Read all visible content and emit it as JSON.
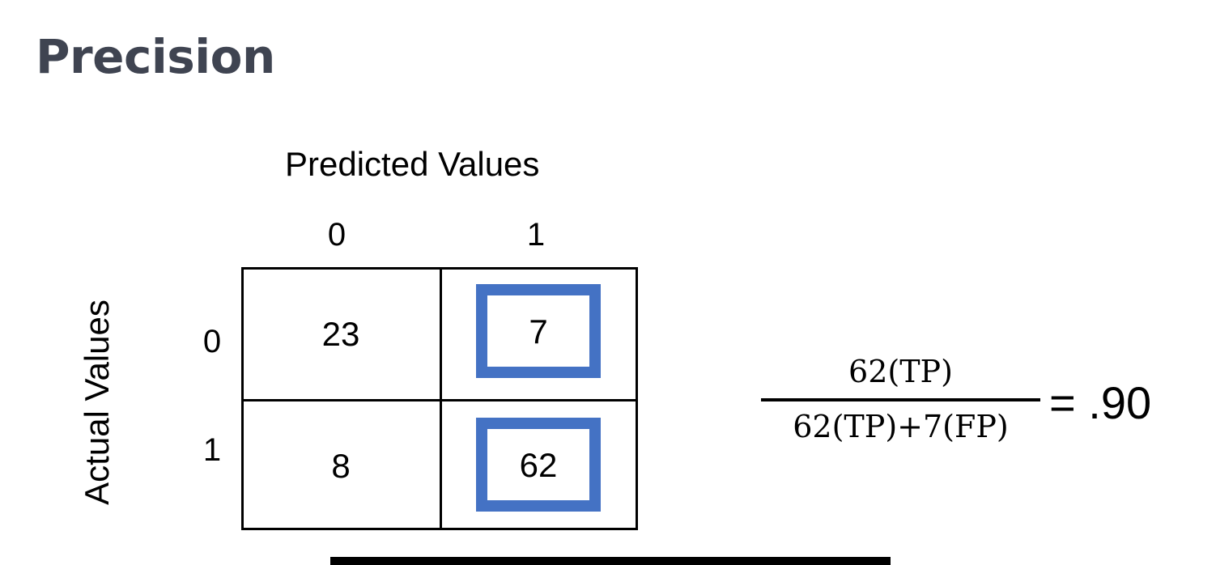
{
  "title": "Precision",
  "matrix": {
    "predicted_label": "Predicted Values",
    "actual_label": "Actual Values",
    "col_labels": [
      "0",
      "1"
    ],
    "row_labels": [
      "0",
      "1"
    ],
    "cells": [
      [
        "23",
        "7"
      ],
      [
        "8",
        "62"
      ]
    ],
    "highlighted_column": "1",
    "highlight_color": "#4472c4"
  },
  "formula": {
    "numerator": "62(TP)",
    "denominator": "62(TP)+7(FP)",
    "result": "= .90"
  },
  "colors": {
    "title": "#3f4451",
    "highlight": "#4472c4"
  }
}
